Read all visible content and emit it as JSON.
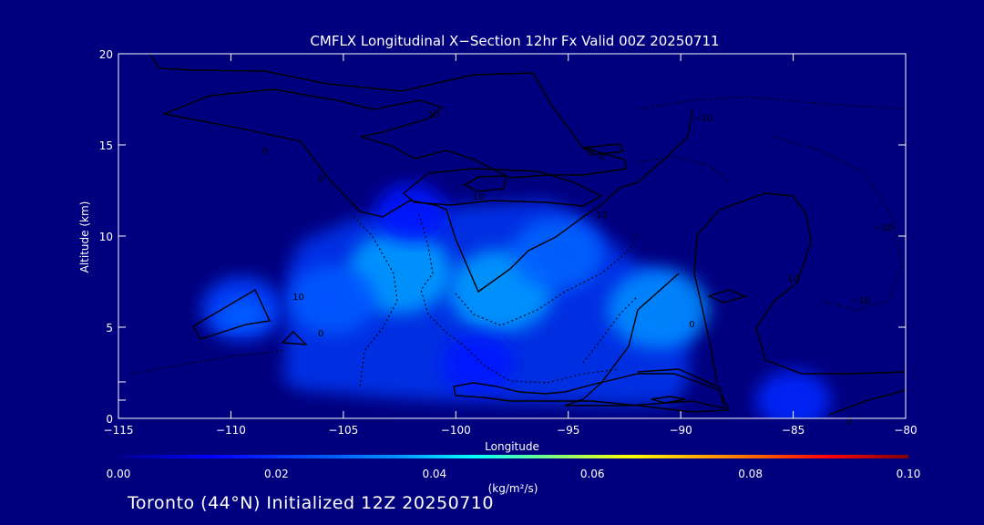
{
  "chart_data": {
    "type": "heatmap",
    "title": "CMFLX Longitudinal X−Section 12hr  Fx Valid 00Z 20250711",
    "xlabel": "Longitude",
    "ylabel": "Altitude (km)",
    "xlim": [
      -115,
      -80
    ],
    "ylim": [
      0,
      20
    ],
    "x_ticks": [
      -115,
      -110,
      -105,
      -100,
      -95,
      -90,
      -85,
      -80
    ],
    "x_tick_labels": [
      "−115",
      "−110",
      "−105",
      "−100",
      "−95",
      "−90",
      "−85",
      "−80"
    ],
    "y_ticks": [
      0,
      5,
      10,
      15,
      20
    ],
    "y_tick_labels": [
      "0",
      "5",
      "10",
      "15",
      "20"
    ],
    "colorbar": {
      "min": 0.0,
      "max": 0.1,
      "ticks": [
        0.0,
        0.02,
        0.04,
        0.06,
        0.08,
        0.1
      ],
      "tick_labels": [
        "0.00",
        "0.02",
        "0.04",
        "0.06",
        "0.08",
        "0.10"
      ],
      "units": "(kg/m²/s)",
      "colors": [
        "#00008f",
        "#0000ff",
        "#0090ff",
        "#00ffff",
        "#80ff80",
        "#ffff00",
        "#ff8000",
        "#ff0000",
        "#800000"
      ]
    },
    "flux_maxima": [
      {
        "lon": -102.5,
        "alt": 8.0,
        "value": 0.036
      },
      {
        "lon": -98.0,
        "alt": 7.0,
        "value": 0.036
      },
      {
        "lon": -95.5,
        "alt": 9.0,
        "value": 0.028
      },
      {
        "lon": -91.0,
        "alt": 6.0,
        "value": 0.034
      },
      {
        "lon": -105.5,
        "alt": 6.5,
        "value": 0.026
      },
      {
        "lon": -109.5,
        "alt": 6.0,
        "value": 0.022
      },
      {
        "lon": -102.0,
        "alt": 11.3,
        "value": 0.016
      },
      {
        "lon": -85.0,
        "alt": 1.0,
        "value": 0.018
      },
      {
        "lon": -99.0,
        "alt": 3.0,
        "value": 0.016
      }
    ],
    "contour_labels": [
      "0",
      "10",
      "10",
      "10",
      "0",
      "10",
      "0",
      "10",
      "0",
      "0",
      "0",
      "−10",
      "−10",
      "−10",
      "0"
    ]
  },
  "footer": "Toronto (44°N) Initialized 12Z 20250710"
}
